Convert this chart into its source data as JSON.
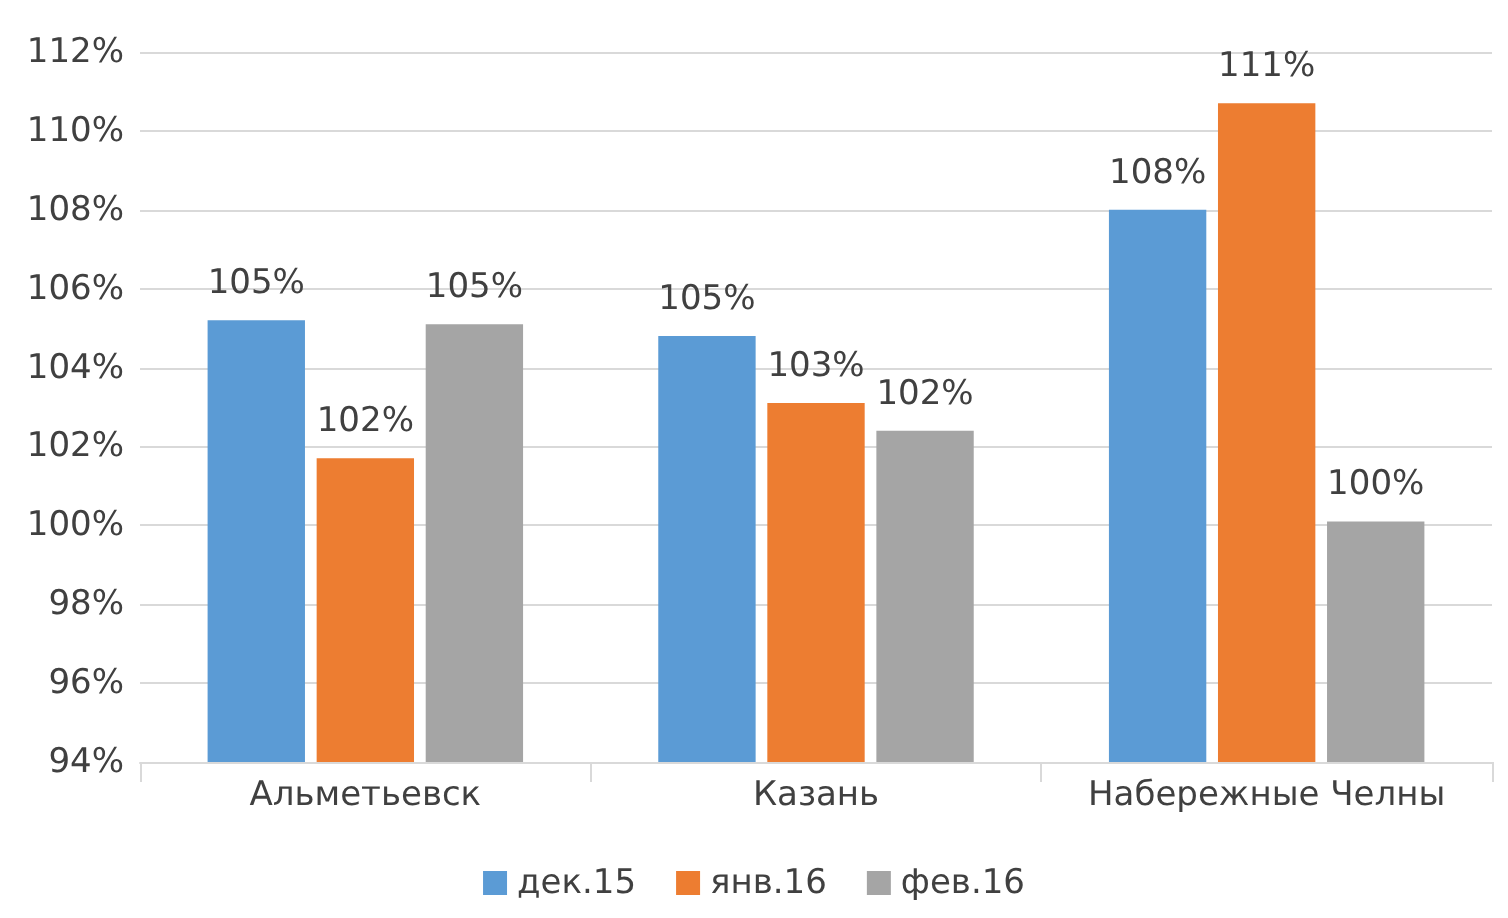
{
  "chart_data": {
    "type": "bar",
    "categories": [
      "Альметьевск",
      "Казань",
      "Набережные Челны"
    ],
    "series": [
      {
        "name": "дек.15",
        "color": "#5b9bd5",
        "values": [
          105.2,
          104.8,
          108.0
        ],
        "value_labels": [
          "105%",
          "105%",
          "108%"
        ]
      },
      {
        "name": "янв.16",
        "color": "#ed7d31",
        "values": [
          101.7,
          103.1,
          110.7
        ],
        "value_labels": [
          "102%",
          "103%",
          "111%"
        ]
      },
      {
        "name": "фев.16",
        "color": "#a5a5a5",
        "values": [
          105.1,
          102.4,
          100.1
        ],
        "value_labels": [
          "105%",
          "102%",
          "100%"
        ]
      }
    ],
    "ylim": [
      94,
      112
    ],
    "yticks": [
      {
        "value": 94,
        "label": "94%"
      },
      {
        "value": 96,
        "label": "96%"
      },
      {
        "value": 98,
        "label": "98%"
      },
      {
        "value": 100,
        "label": "100%"
      },
      {
        "value": 102,
        "label": "102%"
      },
      {
        "value": 104,
        "label": "104%"
      },
      {
        "value": 106,
        "label": "106%"
      },
      {
        "value": 108,
        "label": "108%"
      },
      {
        "value": 110,
        "label": "110%"
      },
      {
        "value": 112,
        "label": "112%"
      }
    ],
    "grid": "y",
    "legend": "bottom"
  }
}
